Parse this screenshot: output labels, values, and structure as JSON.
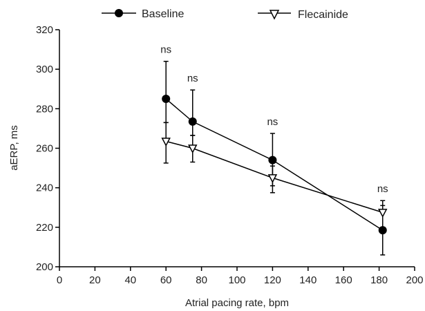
{
  "chart_data": {
    "type": "line",
    "title": "",
    "xlabel": "Atrial pacing rate, bpm",
    "ylabel": "aERP, ms",
    "xlim": [
      0,
      200
    ],
    "ylim": [
      200,
      320
    ],
    "xticks": [
      0,
      20,
      40,
      60,
      80,
      100,
      120,
      140,
      160,
      180,
      200
    ],
    "yticks": [
      200,
      220,
      240,
      260,
      280,
      300,
      320
    ],
    "grid": false,
    "legend_position": "top",
    "series": [
      {
        "name": "Baseline",
        "marker": "filled-circle",
        "color": "#000000",
        "x": [
          60,
          75,
          120,
          182
        ],
        "y": [
          285,
          273.5,
          254,
          218.5
        ],
        "error_upper": [
          304,
          289.5,
          267.5,
          233.5
        ],
        "error_lower": [
          273,
          266.5,
          241,
          206
        ]
      },
      {
        "name": "Flecainide",
        "marker": "open-triangle-down",
        "color": "#000000",
        "x": [
          60,
          75,
          120,
          182
        ],
        "y": [
          263.5,
          260,
          245,
          227.5
        ],
        "error_upper": [
          273,
          266.5,
          251,
          231
        ],
        "error_lower": [
          252.5,
          253,
          237.5,
          220
        ]
      }
    ],
    "annotations": [
      {
        "x": 60,
        "text": "ns",
        "y_at": 304
      },
      {
        "x": 75,
        "text": "ns",
        "y_at": 289.5
      },
      {
        "x": 120,
        "text": "ns",
        "y_at": 267.5
      },
      {
        "x": 182,
        "text": "ns",
        "y_at": 233.5
      }
    ]
  }
}
